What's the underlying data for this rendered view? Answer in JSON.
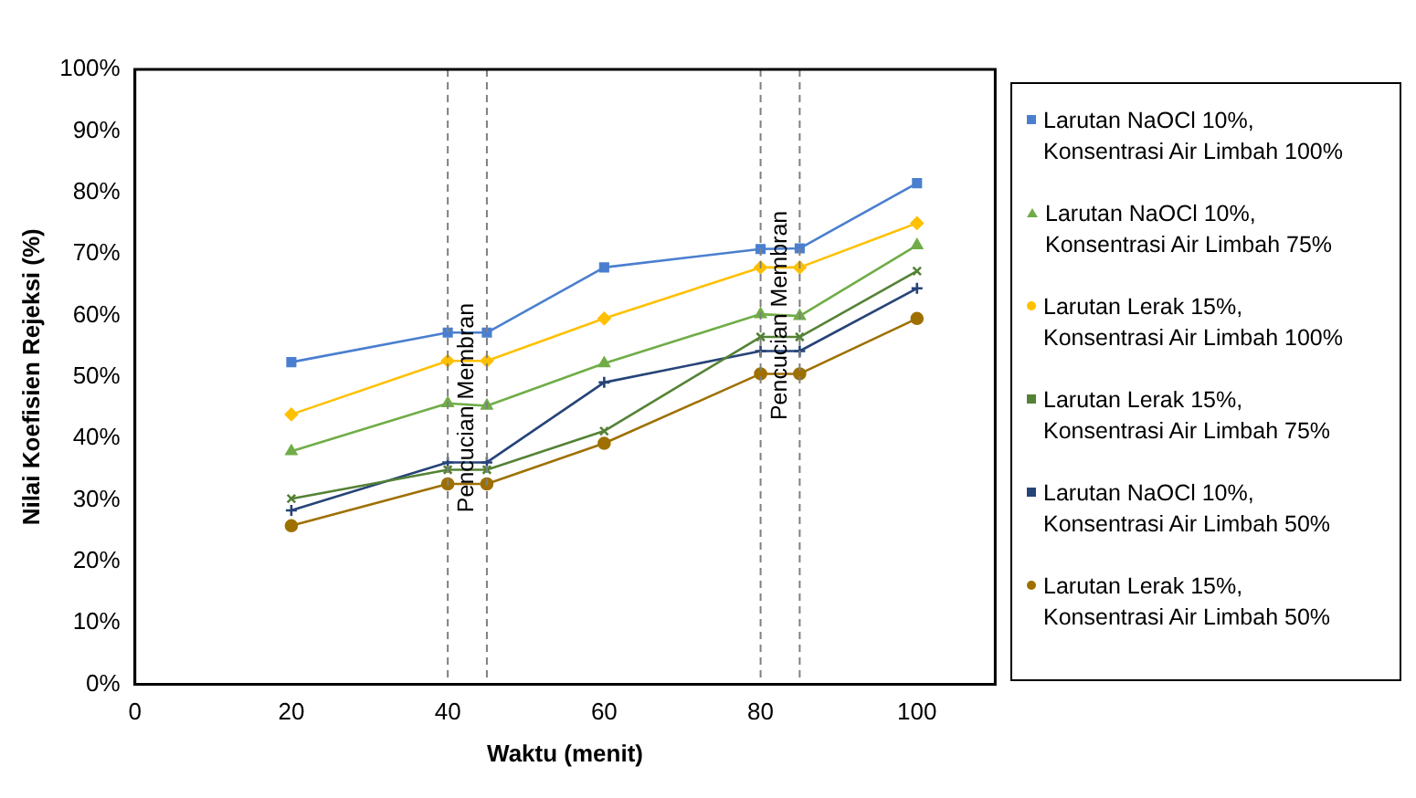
{
  "chart_data": {
    "type": "line",
    "xlabel": "Waktu (menit)",
    "ylabel": "Nilai Koefisien Rejeksi (%)",
    "x": [
      20,
      40,
      45,
      60,
      80,
      85,
      100
    ],
    "series": [
      {
        "name": "Larutan NaOCl 10%, Konsentrasi Air Limbah 100%",
        "color": "#4a7fcf",
        "marker": "square",
        "values": [
          52.4,
          57.2,
          57.2,
          67.8,
          70.8,
          70.9,
          81.5
        ]
      },
      {
        "name": "Larutan NaOCl 10%, Konsentrasi Air Limbah 75%",
        "color": "#70ad47",
        "marker": "triangle",
        "values": [
          37.9,
          45.7,
          45.3,
          52.2,
          60.2,
          59.9,
          71.4
        ]
      },
      {
        "name": "Larutan Lerak 15%, Konsentrasi Air Limbah 100%",
        "color": "#ffc000",
        "marker": "diamond",
        "values": [
          43.9,
          52.6,
          52.6,
          59.5,
          67.8,
          67.8,
          75.0
        ]
      },
      {
        "name": "Larutan Lerak 15%, Konsentrasi Air Limbah 75%",
        "color": "#548235",
        "marker": "cross",
        "values": [
          30.2,
          34.9,
          34.9,
          41.2,
          56.5,
          56.5,
          67.2
        ]
      },
      {
        "name": "Larutan NaOCl 10%, Konsentrasi Air Limbah 50%",
        "color": "#264478",
        "marker": "plus",
        "values": [
          28.3,
          36.1,
          36.1,
          49.1,
          54.2,
          54.2,
          64.4
        ]
      },
      {
        "name": "Larutan Lerak 15%, Konsentrasi Air Limbah 50%",
        "color": "#9e7000",
        "marker": "circle",
        "values": [
          25.8,
          32.6,
          32.6,
          39.2,
          50.5,
          50.5,
          59.5
        ]
      }
    ],
    "xlim": [
      0,
      110
    ],
    "xticks": [
      0,
      20,
      40,
      60,
      80,
      100
    ],
    "ylim": [
      0,
      100
    ],
    "yticks": [
      {
        "value": 0,
        "label": "0%"
      },
      {
        "value": 10,
        "label": "10%"
      },
      {
        "value": 20,
        "label": "20%"
      },
      {
        "value": 30,
        "label": "30%"
      },
      {
        "value": 40,
        "label": "40%"
      },
      {
        "value": 50,
        "label": "50%"
      },
      {
        "value": 60,
        "label": "60%"
      },
      {
        "value": 70,
        "label": "70%"
      },
      {
        "value": 80,
        "label": "80%"
      },
      {
        "value": 90,
        "label": "90%"
      },
      {
        "value": 100,
        "label": "100%"
      }
    ],
    "ref_lines": [
      {
        "axis": "x",
        "value": 40,
        "color": "#808080",
        "line_style": "dashed"
      },
      {
        "axis": "x",
        "value": 45,
        "color": "#808080",
        "line_style": "dashed"
      },
      {
        "axis": "x",
        "value": 80,
        "color": "#808080",
        "line_style": "dashed"
      },
      {
        "axis": "x",
        "value": 85,
        "color": "#808080",
        "line_style": "dashed"
      }
    ],
    "annotations": [
      {
        "text": "Pencucian Membran",
        "x": 42.5,
        "y": 45
      },
      {
        "text": "Pencucian Membran",
        "x": 82.5,
        "y": 60
      }
    ],
    "grid": false,
    "legend": "right",
    "line_style": "solid"
  }
}
